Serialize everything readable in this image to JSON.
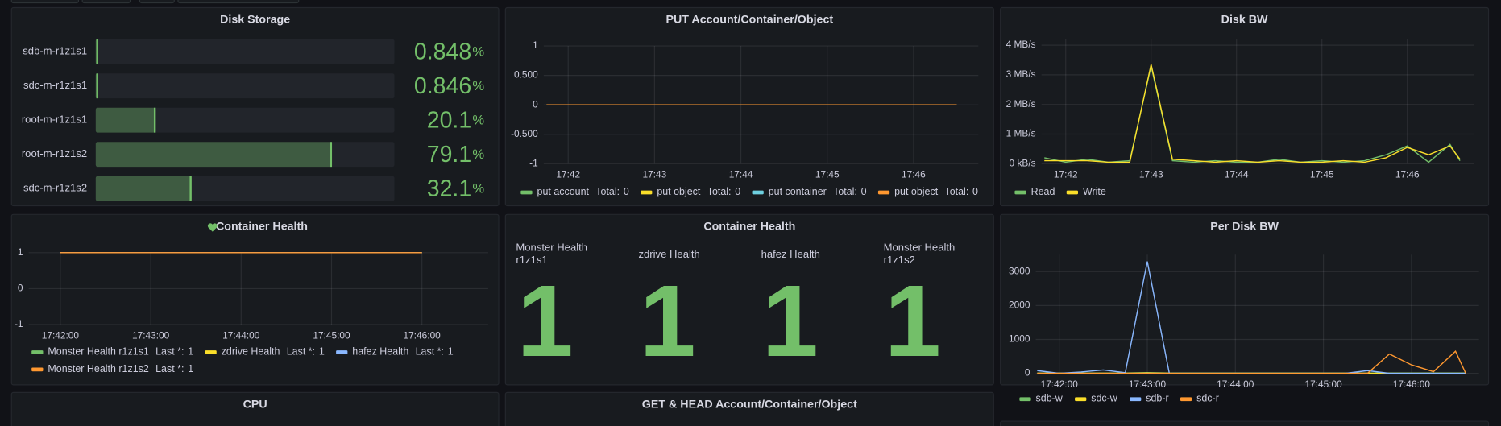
{
  "panels": [
    {
      "type": "bargauge",
      "title": "Disk Storage",
      "unit": "%",
      "xlim": [
        0,
        100
      ],
      "color": "#73bf69",
      "categories": [
        "sdb-m-r1z1s1",
        "sdc-m-r1z1s1",
        "root-m-r1z1s1",
        "root-m-r1z1s2",
        "sdc-m-r1z1s2"
      ],
      "values": [
        0.848,
        0.846,
        20.1,
        79.1,
        32.1
      ]
    },
    {
      "type": "line",
      "title": "PUT Account/Container/Object",
      "x": [
        "17:41:45",
        "17:42:45",
        "17:43:45",
        "17:44:45",
        "17:45:45",
        "17:46:30"
      ],
      "xlim": [
        "17:41:43",
        "17:46:45"
      ],
      "xticks": [
        {
          "value": "17:42:00",
          "label": "17:42"
        },
        {
          "value": "17:43:00",
          "label": "17:43"
        },
        {
          "value": "17:44:00",
          "label": "17:44"
        },
        {
          "value": "17:45:00",
          "label": "17:45"
        },
        {
          "value": "17:46:00",
          "label": "17:46"
        }
      ],
      "ylim": [
        -1,
        1
      ],
      "yticks": [
        -1,
        {
          "value": -0.5,
          "label": "-0.500"
        },
        0,
        {
          "value": 0.5,
          "label": "0.500"
        },
        1
      ],
      "grid": true,
      "legend_stat_label": "Total:",
      "series": [
        {
          "name": "put account",
          "color": "#73bf69",
          "values": [
            0,
            0,
            0,
            0,
            0,
            0
          ],
          "legend_value": 0
        },
        {
          "name": "put object",
          "color": "#fade2a",
          "values": [
            0,
            0,
            0,
            0,
            0,
            0
          ],
          "legend_value": 0
        },
        {
          "name": "put container",
          "color": "#6ed0e0",
          "values": [
            0,
            0,
            0,
            0,
            0,
            0
          ],
          "legend_value": 0
        },
        {
          "name": "put object",
          "color": "#ff9830",
          "values": [
            0,
            0,
            0,
            0,
            0,
            0
          ],
          "legend_value": 0
        }
      ]
    },
    {
      "type": "line",
      "title": "Disk BW",
      "x": [
        "17:41:45",
        "17:42:00",
        "17:42:15",
        "17:42:30",
        "17:42:45",
        "17:43:00",
        "17:43:15",
        "17:43:30",
        "17:43:45",
        "17:44:00",
        "17:44:15",
        "17:44:30",
        "17:44:45",
        "17:45:00",
        "17:45:15",
        "17:45:30",
        "17:45:45",
        "17:46:00",
        "17:46:15",
        "17:46:30",
        "17:46:37"
      ],
      "xlim": [
        "17:41:43",
        "17:46:47"
      ],
      "xticks": [
        {
          "value": "17:42:00",
          "label": "17:42"
        },
        {
          "value": "17:43:00",
          "label": "17:43"
        },
        {
          "value": "17:44:00",
          "label": "17:44"
        },
        {
          "value": "17:45:00",
          "label": "17:45"
        },
        {
          "value": "17:46:00",
          "label": "17:46"
        }
      ],
      "ylim": [
        0,
        4.2
      ],
      "yticks": [
        {
          "value": 0,
          "label": "0 kB/s"
        },
        {
          "value": 1,
          "label": "1 MB/s"
        },
        {
          "value": 2,
          "label": "2 MB/s"
        },
        {
          "value": 3,
          "label": "3 MB/s"
        },
        {
          "value": 4,
          "label": "4 MB/s"
        }
      ],
      "grid": true,
      "series": [
        {
          "name": "Read",
          "color": "#73bf69",
          "values": [
            0.2,
            0.05,
            0.15,
            0.05,
            0.1,
            3.3,
            0.1,
            0.05,
            0.1,
            0.05,
            0.05,
            0.15,
            0.05,
            0.1,
            0.05,
            0.1,
            0.3,
            0.6,
            0.05,
            0.65,
            0.1
          ]
        },
        {
          "name": "Write",
          "color": "#fade2a",
          "values": [
            0.1,
            0.1,
            0.1,
            0.05,
            0.05,
            3.35,
            0.15,
            0.1,
            0.05,
            0.1,
            0.05,
            0.1,
            0.05,
            0.05,
            0.1,
            0.05,
            0.2,
            0.55,
            0.3,
            0.6,
            0.15
          ]
        }
      ]
    },
    {
      "type": "line",
      "title": "Container Health",
      "x": [
        "17:42:00",
        "17:43:00",
        "17:44:00",
        "17:45:00",
        "17:46:00"
      ],
      "xlim": [
        "17:41:39",
        "17:46:44"
      ],
      "xticks": [
        "17:42:00",
        "17:43:00",
        "17:44:00",
        "17:45:00",
        "17:46:00"
      ],
      "ylim": [
        -1,
        1
      ],
      "yticks": [
        -1,
        0,
        1
      ],
      "grid": true,
      "legend_stat_label": "Last *:",
      "series": [
        {
          "name": "Monster Health r1z1s1",
          "color": "#73bf69",
          "values": [
            1,
            1,
            1,
            1,
            1
          ],
          "legend_value": 1
        },
        {
          "name": "zdrive Health",
          "color": "#fade2a",
          "values": [
            1,
            1,
            1,
            1,
            1
          ],
          "legend_value": 1
        },
        {
          "name": "hafez Health",
          "color": "#8ab8ff",
          "values": [
            1,
            1,
            1,
            1,
            1
          ],
          "legend_value": 1
        },
        {
          "name": "Monster Health r1z1s2",
          "color": "#ff9830",
          "values": [
            1,
            1,
            1,
            1,
            1
          ],
          "legend_value": 1
        }
      ]
    },
    {
      "type": "stat",
      "title": "Container Health",
      "color": "#73bf69",
      "items": [
        {
          "name": "Monster Health r1z1s1",
          "value": 1
        },
        {
          "name": "zdrive Health",
          "value": 1
        },
        {
          "name": "hafez Health",
          "value": 1
        },
        {
          "name": "Monster Health r1z1s2",
          "value": 1
        }
      ]
    },
    {
      "type": "line",
      "title": "Per Disk BW",
      "x": [
        "17:41:45",
        "17:42:00",
        "17:42:15",
        "17:42:30",
        "17:42:45",
        "17:43:00",
        "17:43:15",
        "17:43:30",
        "17:43:45",
        "17:44:00",
        "17:44:15",
        "17:44:30",
        "17:44:45",
        "17:45:00",
        "17:45:15",
        "17:45:30",
        "17:45:45",
        "17:46:00",
        "17:46:15",
        "17:46:30",
        "17:46:37"
      ],
      "xlim": [
        "17:41:44",
        "17:46:46"
      ],
      "xticks": [
        "17:42:00",
        "17:43:00",
        "17:44:00",
        "17:45:00",
        "17:46:00"
      ],
      "ylim": [
        0,
        3500
      ],
      "yticks": [
        0,
        1000,
        2000,
        3000
      ],
      "grid": true,
      "series": [
        {
          "name": "sdb-w",
          "color": "#73bf69",
          "values": [
            10,
            10,
            10,
            10,
            10,
            20,
            10,
            10,
            10,
            10,
            10,
            10,
            10,
            10,
            10,
            10,
            10,
            10,
            10,
            10,
            10
          ]
        },
        {
          "name": "sdc-w",
          "color": "#fade2a",
          "values": [
            0,
            0,
            0,
            0,
            0,
            10,
            0,
            0,
            0,
            0,
            0,
            0,
            0,
            0,
            0,
            0,
            0,
            0,
            0,
            0,
            0
          ]
        },
        {
          "name": "sdb-r",
          "color": "#8ab8ff",
          "values": [
            80,
            0,
            40,
            100,
            20,
            3300,
            0,
            0,
            0,
            0,
            0,
            0,
            0,
            0,
            0,
            80,
            0,
            0,
            0,
            0,
            0
          ]
        },
        {
          "name": "sdc-r",
          "color": "#ff9830",
          "values": [
            0,
            0,
            0,
            0,
            0,
            0,
            0,
            0,
            0,
            0,
            0,
            0,
            0,
            0,
            0,
            0,
            570,
            250,
            50,
            650,
            0
          ]
        }
      ]
    },
    {
      "title": "CPU"
    },
    {
      "title": "GET & HEAD Account/Container/Object"
    }
  ]
}
